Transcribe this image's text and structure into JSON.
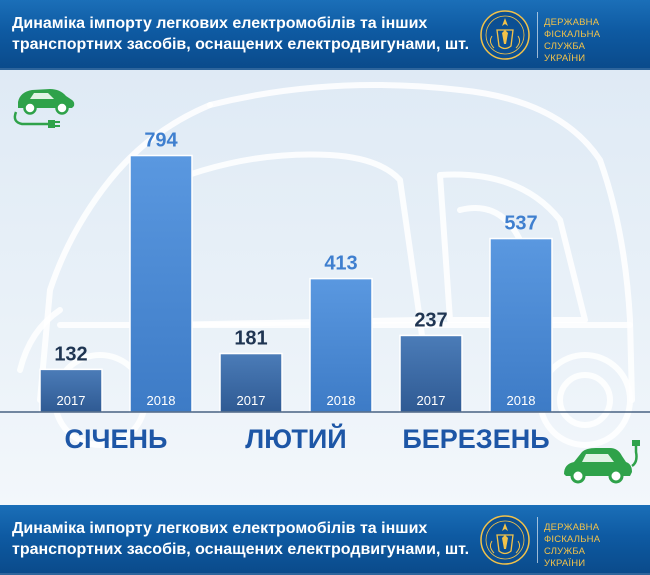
{
  "header": {
    "title_line1": "Динаміка імпорту легкових електромобілів та інших",
    "title_line2": "транспортних засобів, оснащених електродвигунами, шт.",
    "agency_line1": "ДЕРЖАВНА",
    "agency_line2": "ФІСКАЛЬНА СЛУЖБА",
    "agency_line3": "УКРАЇНИ",
    "emblem_icon": "tax-service-emblem-icon"
  },
  "footer": {
    "title_line1": "Динаміка імпорту легкових електромобілів та інших",
    "title_line2": "транспортних засобів, оснащених електродвигунами, шт.",
    "agency_line1": "ДЕРЖАВНА",
    "agency_line2": "ФІСКАЛЬНА СЛУЖБА",
    "agency_line3": "УКРАЇНИ"
  },
  "decor": {
    "left_icon": "electric-car-plug-icon",
    "right_icon": "electric-car-charging-icon",
    "background_icon": "car-outline-icon"
  },
  "colors": {
    "bar_2017": "#3d6ca8",
    "bar_2018": "#4a88d2",
    "value_2017": "#1f3552",
    "value_2018": "#3f7fcf",
    "month_label": "#1d56a6",
    "banner": "#0e5aa2",
    "agency_text": "#f2c24a"
  },
  "chart_data": {
    "type": "bar",
    "title": "Динаміка імпорту легкових електромобілів та інших транспортних засобів, оснащених електродвигунами, шт.",
    "categories": [
      "СІЧЕНЬ",
      "ЛЮТИЙ",
      "БЕРЕЗЕНЬ"
    ],
    "series": [
      {
        "name": "2017",
        "values": [
          132,
          181,
          237
        ]
      },
      {
        "name": "2018",
        "values": [
          794,
          413,
          537
        ]
      }
    ],
    "ylim": [
      0,
      900
    ],
    "grid": false,
    "legend": "none"
  }
}
